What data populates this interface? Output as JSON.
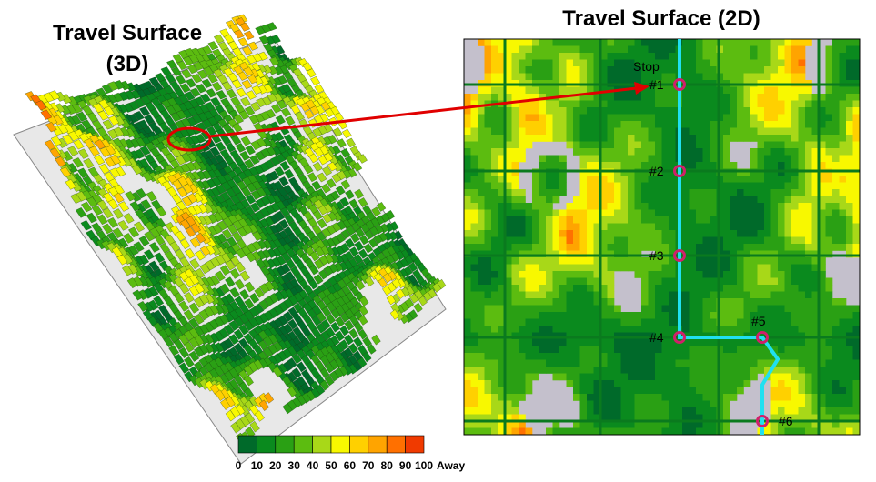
{
  "left_panel": {
    "title_lines": [
      "Travel Surface",
      "(3D)"
    ]
  },
  "right_panel": {
    "title": "Travel Surface (2D)",
    "route_label": "Stop",
    "stops": [
      {
        "label": "#1"
      },
      {
        "label": "#2"
      },
      {
        "label": "#3"
      },
      {
        "label": "#4"
      },
      {
        "label": "#5"
      },
      {
        "label": "#6"
      }
    ]
  },
  "legend": {
    "colors": [
      "#006a2a",
      "#0a8a1e",
      "#2aa014",
      "#5cbc10",
      "#a8d818",
      "#f8f800",
      "#ffd000",
      "#ffa400",
      "#ff7000",
      "#f03a00"
    ],
    "labels": [
      0,
      10,
      20,
      30,
      40,
      50,
      60,
      70,
      80,
      90,
      100
    ],
    "unit_label": "Away"
  }
}
